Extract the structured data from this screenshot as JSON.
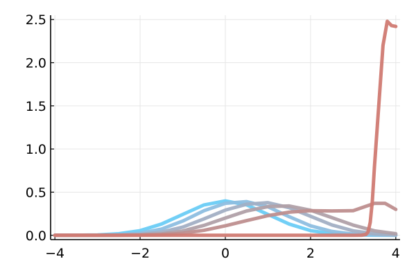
{
  "chart_data": {
    "type": "line",
    "title": "",
    "xlabel": "",
    "ylabel": "",
    "xlim": [
      -4.1,
      4.1
    ],
    "ylim": [
      -0.05,
      2.55
    ],
    "x_ticks": [
      -4,
      -2,
      0,
      2,
      4
    ],
    "x_tick_labels": [
      "−4",
      "−2",
      "0",
      "2",
      "4"
    ],
    "y_ticks": [
      0.0,
      0.5,
      1.0,
      1.5,
      2.0,
      2.5
    ],
    "y_tick_labels": [
      "0.0",
      "0.5",
      "1.0",
      "1.5",
      "2.0",
      "2.5"
    ],
    "grid": true,
    "legend": "none",
    "series": [
      {
        "color": "#6ACCF5",
        "x": [
          -4,
          -3.5,
          -3,
          -2.5,
          -2,
          -1.5,
          -1,
          -0.5,
          0,
          0.5,
          1,
          1.5,
          2,
          2.5,
          3,
          3.5,
          4
        ],
        "y": [
          0.0,
          0.001,
          0.004,
          0.018,
          0.054,
          0.13,
          0.242,
          0.352,
          0.399,
          0.352,
          0.242,
          0.13,
          0.054,
          0.018,
          0.004,
          0.001,
          0.0
        ]
      },
      {
        "color": "#8DBEE0",
        "x": [
          -4,
          -3.5,
          -3,
          -2.5,
          -2,
          -1.5,
          -1,
          -0.5,
          0,
          0.5,
          1,
          1.5,
          2,
          2.5,
          3,
          3.5,
          4
        ],
        "y": [
          0.0,
          0.0,
          0.001,
          0.006,
          0.024,
          0.072,
          0.165,
          0.285,
          0.37,
          0.39,
          0.33,
          0.215,
          0.11,
          0.045,
          0.014,
          0.004,
          0.001
        ]
      },
      {
        "color": "#A2AFC4",
        "x": [
          -4,
          -3.5,
          -3,
          -2.5,
          -2,
          -1.5,
          -1,
          -0.5,
          0,
          0.5,
          1,
          1.5,
          2,
          2.5,
          3,
          3.5,
          4
        ],
        "y": [
          0.0,
          0.0,
          0.0,
          0.002,
          0.01,
          0.036,
          0.095,
          0.19,
          0.292,
          0.36,
          0.378,
          0.32,
          0.22,
          0.12,
          0.052,
          0.018,
          0.005
        ]
      },
      {
        "color": "#B0A0A8",
        "x": [
          -4,
          -3.5,
          -3,
          -2.5,
          -2,
          -1.5,
          -1,
          -0.5,
          0,
          0.5,
          1,
          1.5,
          2,
          2.5,
          3,
          3.5,
          4
        ],
        "y": [
          0.0,
          0.0,
          0.0,
          0.001,
          0.004,
          0.016,
          0.05,
          0.115,
          0.2,
          0.282,
          0.332,
          0.34,
          0.29,
          0.205,
          0.118,
          0.052,
          0.018
        ]
      },
      {
        "color": "#BE8E8E",
        "x": [
          -4,
          -3.5,
          -3,
          -2.5,
          -2,
          -1.5,
          -1,
          -0.5,
          0,
          0.5,
          1,
          1.5,
          2,
          2.5,
          3,
          3.5,
          3.75,
          4
        ],
        "y": [
          0.0,
          0.0,
          0.0,
          0.0,
          0.002,
          0.008,
          0.024,
          0.058,
          0.11,
          0.17,
          0.228,
          0.268,
          0.285,
          0.282,
          0.285,
          0.37,
          0.37,
          0.3
        ]
      },
      {
        "color": "#D07A72",
        "x": [
          -4,
          -3,
          -2,
          -1,
          0,
          1,
          2,
          3,
          3.2,
          3.3,
          3.35,
          3.4,
          3.45,
          3.5,
          3.6,
          3.7,
          3.8,
          3.9,
          4
        ],
        "y": [
          0.0,
          0.0,
          0.0,
          0.0,
          0.0,
          0.0,
          0.0,
          0.0,
          0.001,
          0.01,
          0.04,
          0.15,
          0.4,
          0.8,
          1.5,
          2.2,
          2.48,
          2.43,
          2.42
        ]
      }
    ]
  }
}
